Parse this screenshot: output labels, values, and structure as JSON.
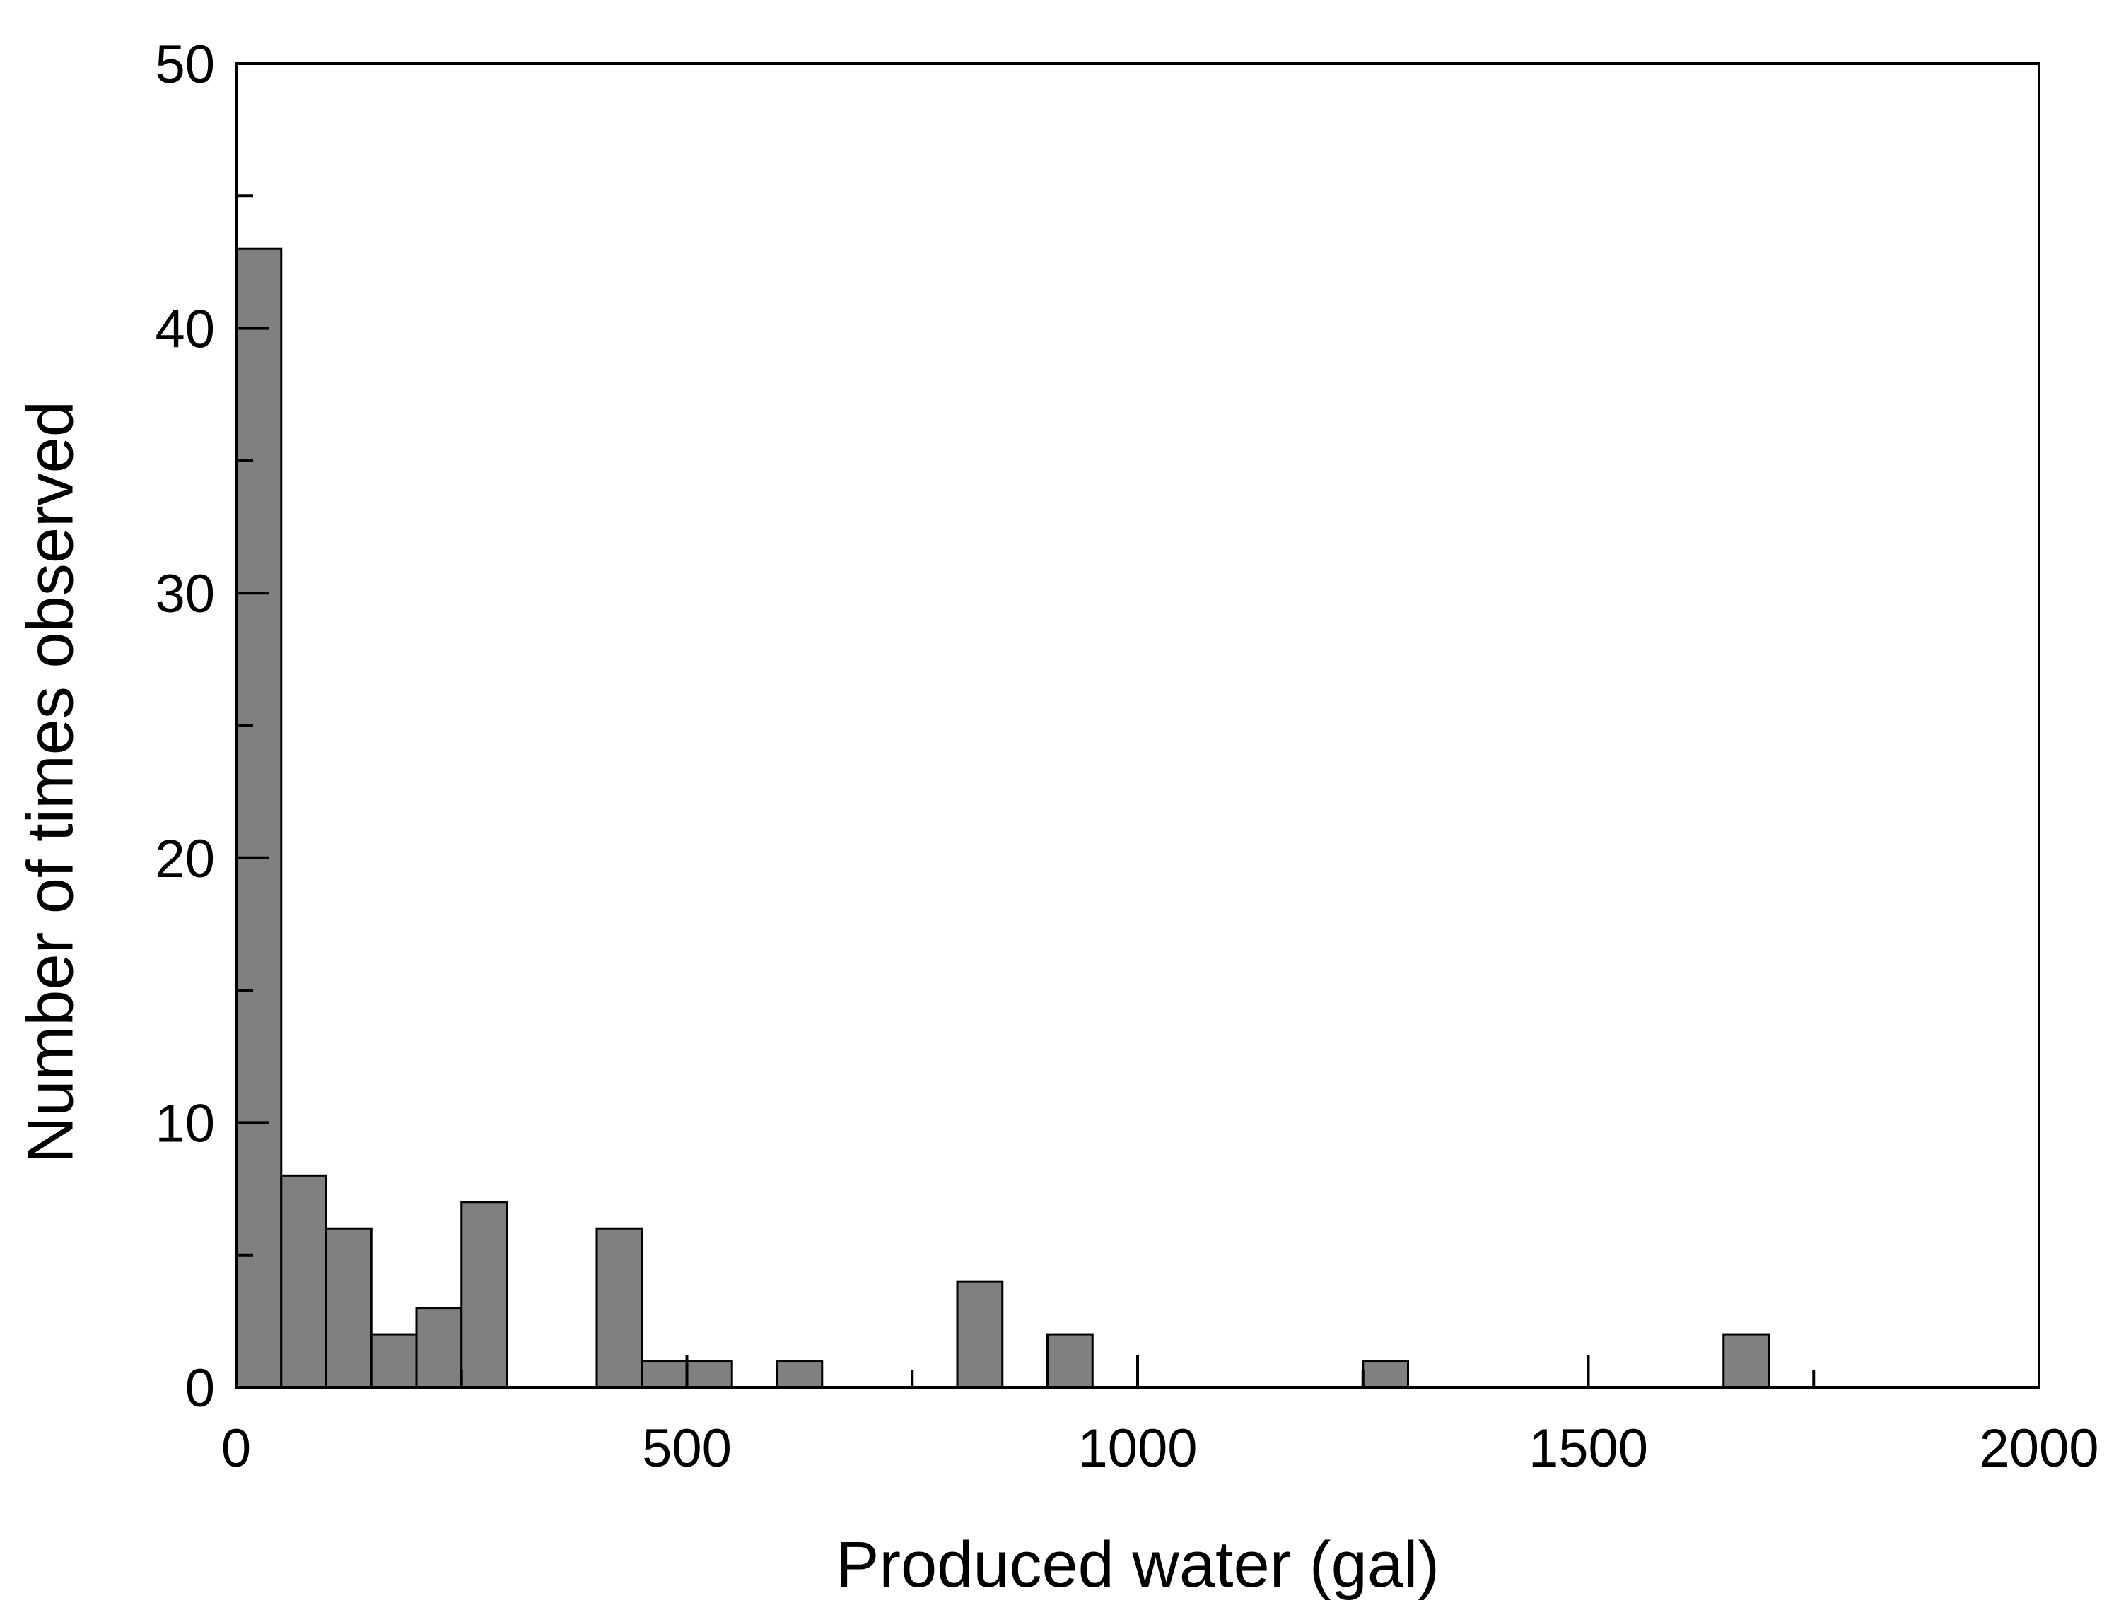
{
  "chart_data": {
    "type": "bar",
    "xlabel": "Produced water (gal)",
    "ylabel": "Number of times observed",
    "xlim": [
      0,
      2000
    ],
    "ylim": [
      0,
      50
    ],
    "x_ticks": [
      0,
      500,
      1000,
      1500,
      2000
    ],
    "y_ticks": [
      0,
      10,
      20,
      30,
      40,
      50
    ],
    "bin_width": 50,
    "grid": false,
    "bar_color": "#808080",
    "bar_edge_color": "#000000",
    "bins": [
      {
        "start": 0,
        "count": 43
      },
      {
        "start": 50,
        "count": 8
      },
      {
        "start": 100,
        "count": 6
      },
      {
        "start": 150,
        "count": 2
      },
      {
        "start": 200,
        "count": 3
      },
      {
        "start": 250,
        "count": 7
      },
      {
        "start": 400,
        "count": 6
      },
      {
        "start": 450,
        "count": 1
      },
      {
        "start": 500,
        "count": 1
      },
      {
        "start": 600,
        "count": 1
      },
      {
        "start": 800,
        "count": 4
      },
      {
        "start": 900,
        "count": 2
      },
      {
        "start": 1250,
        "count": 1
      },
      {
        "start": 1650,
        "count": 2
      }
    ]
  }
}
